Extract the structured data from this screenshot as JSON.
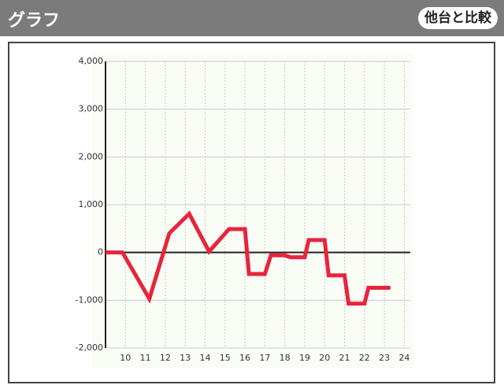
{
  "header": {
    "title": "グラフ",
    "button": "他台と比較"
  },
  "chart_data": {
    "type": "line",
    "x": [
      9,
      9.85,
      11.2,
      12.2,
      13.2,
      14.2,
      15.2,
      16.0,
      16.2,
      17.0,
      17.3,
      18.0,
      18.3,
      19.0,
      19.2,
      20.0,
      20.2,
      21.0,
      21.2,
      22.0,
      22.2,
      23.3
    ],
    "series": [
      {
        "color": "#e8243c",
        "values": [
          0,
          0,
          -970,
          400,
          810,
          20,
          490,
          490,
          -450,
          -450,
          -60,
          -60,
          -100,
          -100,
          260,
          260,
          -480,
          -480,
          -1070,
          -1070,
          -740,
          -740
        ]
      }
    ],
    "xlim": [
      9,
      24.3
    ],
    "xticks": [
      10,
      11,
      12,
      13,
      14,
      15,
      16,
      17,
      18,
      19,
      20,
      21,
      22,
      23,
      24
    ],
    "ylim": [
      -2000,
      4000
    ],
    "yticks": [
      {
        "value": -2000,
        "label": "-2,000"
      },
      {
        "value": -1000,
        "label": "-1,000"
      },
      0,
      {
        "value": 1000,
        "label": "1,000"
      },
      {
        "value": 2000,
        "label": "2,000"
      },
      {
        "value": 3000,
        "label": "3,000"
      },
      {
        "value": 4000,
        "label": "4,000"
      }
    ],
    "grid": true
  }
}
